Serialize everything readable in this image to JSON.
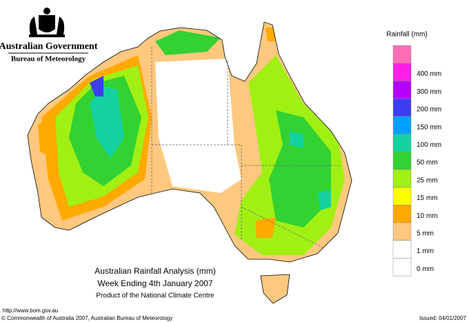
{
  "header": {
    "government": "Australian Government",
    "agency": "Bureau of Meteorology"
  },
  "legend": {
    "title": "Rainfall (mm)",
    "items": [
      {
        "label": null,
        "color": "#ff6eb4"
      },
      {
        "label": "400 mm",
        "color": "#ff1ee6"
      },
      {
        "label": "300 mm",
        "color": "#b400ff"
      },
      {
        "label": "200 mm",
        "color": "#3c3cf0"
      },
      {
        "label": "150 mm",
        "color": "#00a0ff"
      },
      {
        "label": "100 mm",
        "color": "#14d2a0"
      },
      {
        "label": "50 mm",
        "color": "#32d232"
      },
      {
        "label": "25 mm",
        "color": "#a0f014"
      },
      {
        "label": "15 mm",
        "color": "#ffff00"
      },
      {
        "label": "10 mm",
        "color": "#ffaa00"
      },
      {
        "label": "5 mm",
        "color": "#ffc87f"
      },
      {
        "label": "1 mm",
        "color": "#ffffff"
      },
      {
        "label": "0 mm",
        "color": "#ffffff"
      }
    ]
  },
  "title": {
    "line1": "Australian Rainfall Analysis (mm)",
    "line2": "Week Ending 4th January 2007",
    "line3": "Product of the National Climate Centre"
  },
  "footer": {
    "url": "http://www.bom.gov.au",
    "copyright": "© Commonwealth of Australia 2007, Australian Bureau of Meteorology",
    "issued": "Issued: 04/01/2007"
  }
}
